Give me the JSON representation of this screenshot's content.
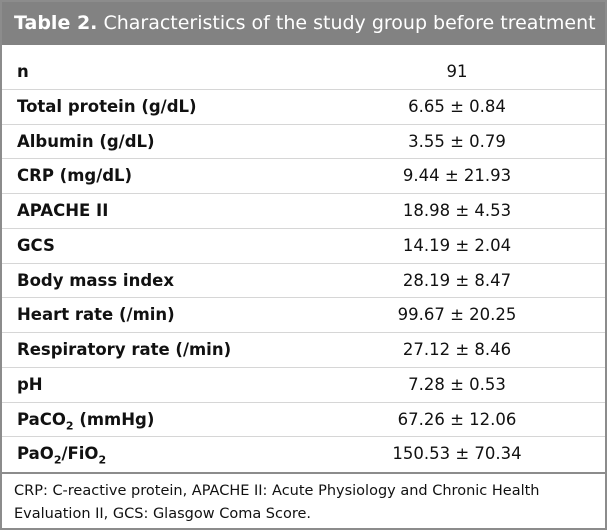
{
  "header": {
    "label": "Table 2.",
    "title": "Characteristics of the study group before treatment"
  },
  "table": {
    "rows": [
      {
        "label": "n",
        "value": "91"
      },
      {
        "label": "Total protein (g/dL)",
        "value": "6.65 ± 0.84"
      },
      {
        "label": "Albumin (g/dL)",
        "value": "3.55 ± 0.79"
      },
      {
        "label": "CRP (mg/dL)",
        "value": "9.44 ± 21.93"
      },
      {
        "label": "APACHE II",
        "value": "18.98 ± 4.53"
      },
      {
        "label": "GCS",
        "value": "14.19 ± 2.04"
      },
      {
        "label": "Body mass index",
        "value": "28.19 ± 8.47"
      },
      {
        "label": "Heart rate (/min)",
        "value": "99.67 ± 20.25"
      },
      {
        "label": "Respiratory rate (/min)",
        "value": "27.12 ± 8.46"
      },
      {
        "label": "pH",
        "value": "7.28 ± 0.53"
      },
      {
        "label_parts": [
          {
            "text": "PaCO"
          },
          {
            "text": "2",
            "sub": true
          },
          {
            "text": " (mmHg)"
          }
        ],
        "value": "67.26 ± 12.06"
      },
      {
        "label_parts": [
          {
            "text": "PaO"
          },
          {
            "text": "2",
            "sub": true
          },
          {
            "text": "/FiO"
          },
          {
            "text": "2",
            "sub": true
          }
        ],
        "value": "150.53 ± 70.34"
      }
    ]
  },
  "footnote": "CRP: C-reactive protein, APACHE II: Acute Physiology and Chronic Health Evaluation II, GCS: Glasgow Coma Score."
}
